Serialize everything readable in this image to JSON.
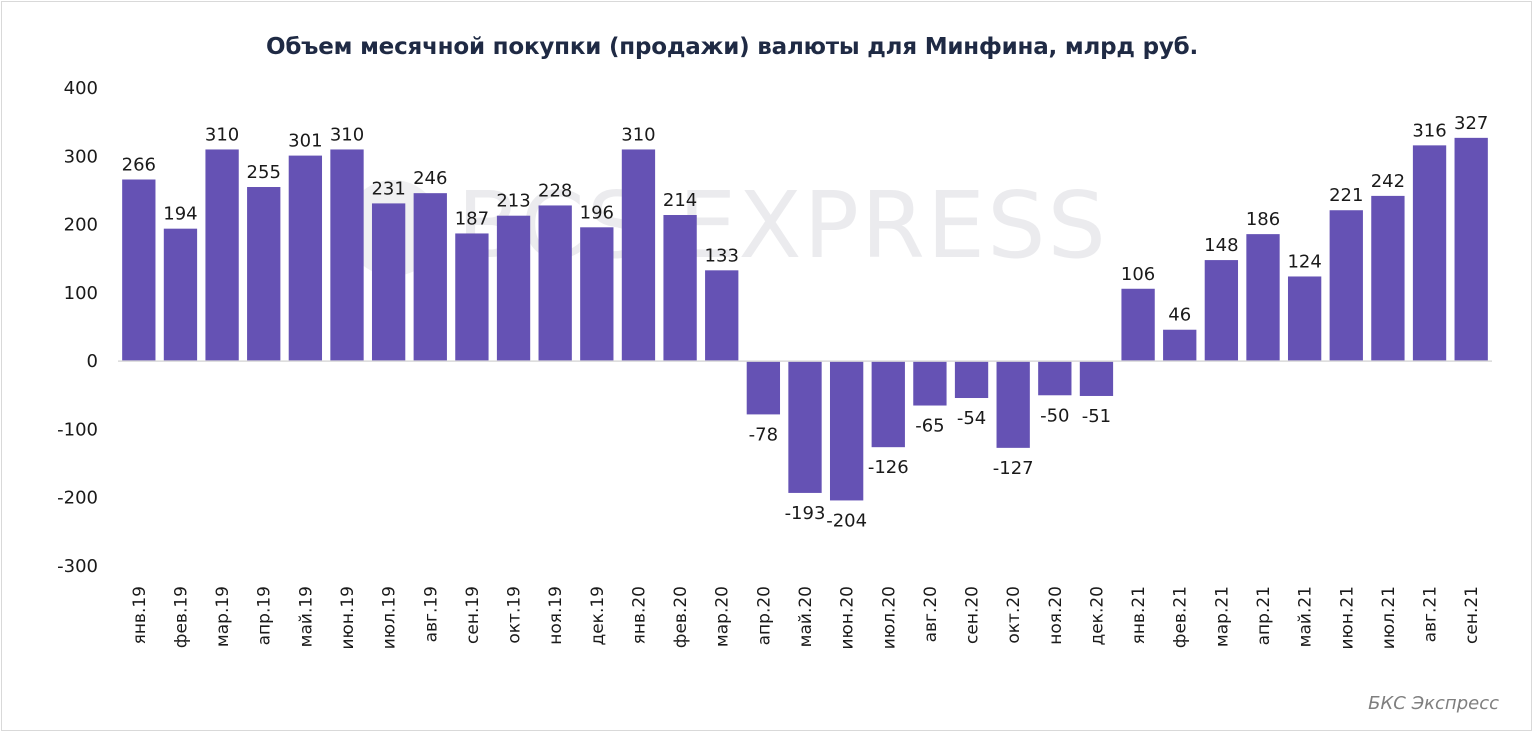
{
  "title": "Объем месячной покупки (продажи) валюты для Минфина, млрд руб.",
  "watermark": "BCS EXPRESS",
  "source": "БКС Экспресс",
  "colors": {
    "bar": "#6552b4",
    "axis": "#d9d9d9",
    "text": "#1a1a1a",
    "title": "#1f2a44"
  },
  "chart_data": {
    "type": "bar",
    "title": "Объем месячной покупки (продажи) валюты для Минфина, млрд руб.",
    "xlabel": "",
    "ylabel": "",
    "ylim": [
      -300,
      400
    ],
    "yticks": [
      400,
      300,
      200,
      100,
      0,
      -100,
      -200,
      -300
    ],
    "grid": false,
    "legend": "none",
    "categories": [
      "янв.19",
      "фев.19",
      "мар.19",
      "апр.19",
      "май.19",
      "июн.19",
      "июл.19",
      "авг.19",
      "сен.19",
      "окт.19",
      "ноя.19",
      "дек.19",
      "янв.20",
      "фев.20",
      "мар.20",
      "апр.20",
      "май.20",
      "июн.20",
      "июл.20",
      "авг.20",
      "сен.20",
      "окт.20",
      "ноя.20",
      "дек.20",
      "янв.21",
      "фев.21",
      "мар.21",
      "апр.21",
      "май.21",
      "июн.21",
      "июл.21",
      "авг.21",
      "сен.21"
    ],
    "values": [
      266,
      194,
      310,
      255,
      301,
      310,
      231,
      246,
      187,
      213,
      228,
      196,
      310,
      214,
      133,
      -78,
      -193,
      -204,
      -126,
      -65,
      -54,
      -127,
      -50,
      -51,
      106,
      46,
      148,
      186,
      124,
      221,
      242,
      316,
      327
    ]
  }
}
